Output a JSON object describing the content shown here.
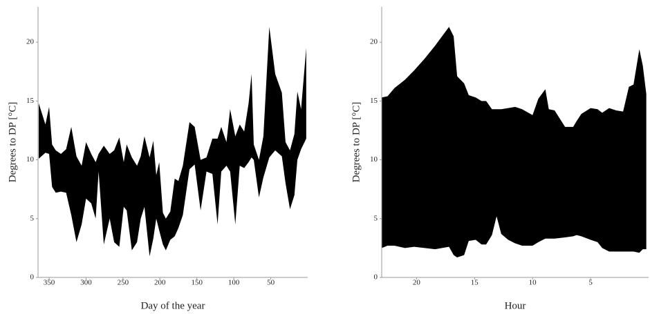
{
  "chart_data": [
    {
      "type": "area_range",
      "xlabel": "Day of the year",
      "ylabel": "Degrees to DP [°C]",
      "color": "#000000",
      "xlim": [
        365,
        0
      ],
      "ylim": [
        0,
        23
      ],
      "xticks": [
        350,
        300,
        250,
        200,
        150,
        100,
        50
      ],
      "yticks": [
        0,
        5,
        10,
        15,
        20
      ],
      "x": [
        364,
        355,
        350,
        346,
        341,
        334,
        327,
        320,
        313,
        306,
        300,
        293,
        287,
        283,
        276,
        268,
        262,
        255,
        249,
        245,
        238,
        231,
        226,
        221,
        214,
        209,
        205,
        201,
        196,
        192,
        186,
        180,
        175,
        169,
        160,
        153,
        145,
        137,
        129,
        122,
        117,
        110,
        105,
        98,
        92,
        86,
        80,
        76,
        73,
        66,
        60,
        52,
        44,
        35,
        30,
        24,
        18,
        14,
        9,
        2
      ],
      "high": [
        14.8,
        13,
        14.5,
        11.3,
        10.8,
        10.5,
        10.9,
        12.8,
        10.3,
        9.5,
        11.5,
        10.5,
        9.8,
        10.5,
        11.2,
        10.5,
        10.8,
        11.9,
        9.8,
        11.3,
        10.2,
        9.5,
        10.3,
        12,
        10.2,
        11.6,
        8.7,
        9.8,
        5.5,
        5,
        5.6,
        8.4,
        8.2,
        9.5,
        13.2,
        12.8,
        10,
        10.2,
        11.8,
        11.8,
        12.8,
        11.5,
        14.3,
        12,
        13,
        12.4,
        14.8,
        17.3,
        11.3,
        10,
        12,
        21.3,
        17.3,
        15.7,
        11.5,
        10.8,
        12.2,
        15.8,
        14.3,
        19.5
      ],
      "low": [
        10.1,
        10.6,
        10.5,
        7.7,
        7.2,
        7.3,
        7.2,
        5.3,
        3,
        4.5,
        6.7,
        6.3,
        5,
        9,
        2.8,
        5,
        3,
        2.6,
        6,
        5.7,
        2.3,
        3,
        5,
        6,
        1.8,
        3.3,
        5,
        4,
        2.8,
        2.3,
        3.2,
        3.5,
        4.2,
        5.3,
        9.2,
        9.6,
        5.7,
        9,
        8.8,
        4.5,
        9,
        9.5,
        9,
        4.5,
        9.5,
        9.3,
        9.8,
        10.2,
        10,
        6.8,
        8.5,
        10.2,
        10.8,
        10.3,
        8,
        5.8,
        7,
        10,
        10.9,
        11.8
      ]
    },
    {
      "type": "area_range",
      "xlabel": "Hour",
      "ylabel": "Degrees to DP [°C]",
      "color": "#000000",
      "xlim": [
        23,
        0
      ],
      "ylim": [
        0,
        23
      ],
      "xticks": [
        20,
        15,
        10,
        5
      ],
      "yticks": [
        0,
        5,
        10,
        15,
        20
      ],
      "x": [
        23,
        22.5,
        21.9,
        21,
        20.2,
        19.3,
        18.4,
        17.2,
        16.8,
        16.5,
        15.9,
        15.5,
        14.9,
        14.4,
        14,
        13.5,
        13.1,
        12.7,
        12.1,
        11.5,
        10.9,
        10,
        9.5,
        8.9,
        8.6,
        8.1,
        7.2,
        6.5,
        6.2,
        5.8,
        5,
        4.4,
        4,
        3.4,
        2.8,
        2.2,
        1.7,
        1.3,
        0.8,
        0.5,
        0.2
      ],
      "high": [
        15.3,
        15.4,
        16.1,
        16.8,
        17.6,
        18.6,
        19.7,
        21.3,
        20.5,
        17.1,
        16.5,
        15.5,
        15.3,
        15,
        15,
        14.3,
        14.3,
        14.3,
        14.4,
        14.5,
        14.3,
        13.8,
        15.2,
        16,
        14.3,
        14.2,
        12.8,
        12.8,
        13.3,
        13.9,
        14.4,
        14.3,
        14,
        14.4,
        14.2,
        14.1,
        16.2,
        16.4,
        19.4,
        18,
        15.6
      ],
      "low": [
        2.5,
        2.7,
        2.7,
        2.5,
        2.6,
        2.5,
        2.4,
        2.6,
        1.9,
        1.7,
        1.9,
        3.1,
        3.2,
        2.8,
        2.8,
        3.6,
        5.2,
        3.7,
        3.2,
        2.9,
        2.7,
        2.7,
        3,
        3.3,
        3.3,
        3.3,
        3.4,
        3.5,
        3.6,
        3.5,
        3.2,
        3,
        2.5,
        2.2,
        2.2,
        2.2,
        2.2,
        2.2,
        2.1,
        2.4,
        2.4
      ]
    }
  ]
}
